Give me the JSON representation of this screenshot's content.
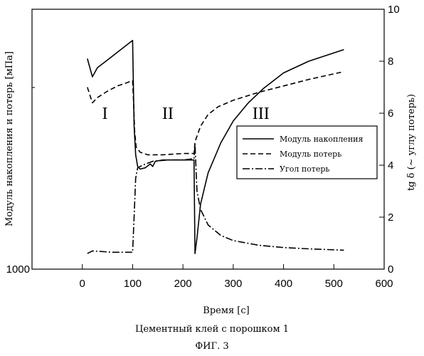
{
  "chart_data": {
    "type": "line",
    "xlabel": "Время [с]",
    "ylabel_left": "Модуль накопления и потерь [мПа]",
    "ylabel_right": "tg δ (~ углу потерь)",
    "x_range": [
      -100,
      600
    ],
    "x_ticks": [
      0,
      100,
      200,
      300,
      400,
      500,
      600
    ],
    "y_left_scale": "log",
    "y_left_range": [
      1000,
      10000
    ],
    "y_left_tick_labels": [
      {
        "value": 1000,
        "label": "1000"
      }
    ],
    "y_left_tick_values": [
      1000,
      10000
    ],
    "y_right_range": [
      0,
      10
    ],
    "y_right_ticks": [
      0,
      2,
      4,
      6,
      8,
      10
    ],
    "grid": false,
    "legend": {
      "position": "right",
      "entries": [
        {
          "name": "Модуль накопления",
          "style": "solid"
        },
        {
          "name": "Модуль потерь",
          "style": "dashed"
        },
        {
          "name": "Угол потерь",
          "style": "dashdot"
        }
      ]
    },
    "regions": [
      {
        "label": "I",
        "x": 45,
        "y": 6.0
      },
      {
        "label": "II",
        "x": 170,
        "y": 6.0
      },
      {
        "label": "III",
        "x": 355,
        "y": 6.0
      }
    ],
    "series": [
      {
        "name": "Модуль накопления",
        "style": "solid",
        "axis": "right",
        "points": [
          [
            10,
            8.1
          ],
          [
            20,
            7.4
          ],
          [
            30,
            7.75
          ],
          [
            50,
            8.05
          ],
          [
            70,
            8.35
          ],
          [
            100,
            8.8
          ],
          [
            102,
            6.6
          ],
          [
            103,
            5.5
          ],
          [
            106,
            4.4
          ],
          [
            110,
            3.95
          ],
          [
            115,
            3.85
          ],
          [
            125,
            3.9
          ],
          [
            135,
            4.05
          ],
          [
            140,
            3.95
          ],
          [
            145,
            4.15
          ],
          [
            160,
            4.2
          ],
          [
            180,
            4.2
          ],
          [
            200,
            4.2
          ],
          [
            222,
            4.2
          ],
          [
            224,
            0.6
          ],
          [
            228,
            1.2
          ],
          [
            235,
            2.5
          ],
          [
            250,
            3.7
          ],
          [
            275,
            4.85
          ],
          [
            300,
            5.7
          ],
          [
            330,
            6.4
          ],
          [
            360,
            6.95
          ],
          [
            400,
            7.55
          ],
          [
            450,
            8.0
          ],
          [
            520,
            8.45
          ]
        ]
      },
      {
        "name": "Модуль потерь",
        "style": "dashed",
        "axis": "right",
        "points": [
          [
            10,
            7.0
          ],
          [
            20,
            6.4
          ],
          [
            30,
            6.6
          ],
          [
            50,
            6.85
          ],
          [
            70,
            7.05
          ],
          [
            100,
            7.25
          ],
          [
            102,
            6.4
          ],
          [
            104,
            5.3
          ],
          [
            107,
            4.7
          ],
          [
            115,
            4.5
          ],
          [
            130,
            4.4
          ],
          [
            160,
            4.4
          ],
          [
            200,
            4.45
          ],
          [
            222,
            4.45
          ],
          [
            224,
            4.9
          ],
          [
            235,
            5.5
          ],
          [
            250,
            5.95
          ],
          [
            270,
            6.25
          ],
          [
            300,
            6.5
          ],
          [
            350,
            6.8
          ],
          [
            400,
            7.05
          ],
          [
            450,
            7.3
          ],
          [
            520,
            7.6
          ]
        ]
      },
      {
        "name": "Угол потерь",
        "style": "dashdot",
        "axis": "right",
        "points": [
          [
            10,
            0.6
          ],
          [
            20,
            0.7
          ],
          [
            60,
            0.65
          ],
          [
            100,
            0.65
          ],
          [
            103,
            2.0
          ],
          [
            106,
            3.5
          ],
          [
            110,
            3.9
          ],
          [
            120,
            4.0
          ],
          [
            140,
            4.15
          ],
          [
            170,
            4.2
          ],
          [
            200,
            4.2
          ],
          [
            222,
            4.25
          ],
          [
            224,
            4.8
          ],
          [
            228,
            3.0
          ],
          [
            235,
            2.3
          ],
          [
            250,
            1.7
          ],
          [
            275,
            1.3
          ],
          [
            300,
            1.1
          ],
          [
            350,
            0.92
          ],
          [
            400,
            0.83
          ],
          [
            450,
            0.78
          ],
          [
            520,
            0.73
          ]
        ]
      }
    ]
  },
  "caption": {
    "line1": "Цементный клей с порошком 1",
    "line2": "ФИГ. 3"
  }
}
